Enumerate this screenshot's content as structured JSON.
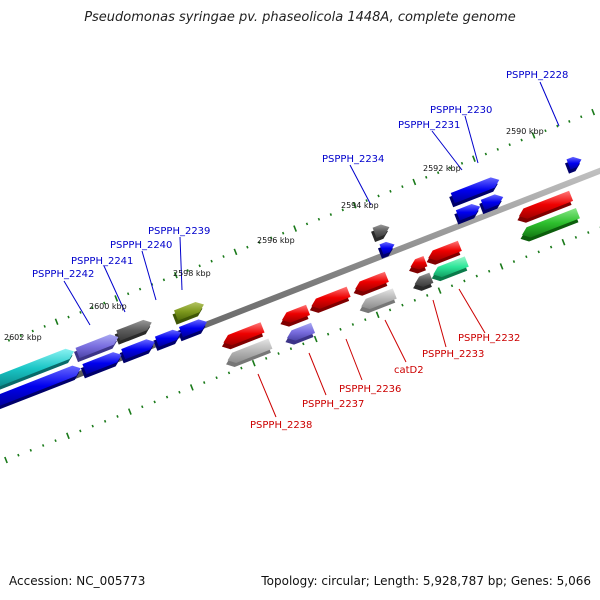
{
  "title": "Pseudomonas syringae pv. phaseolicola 1448A, complete genome",
  "footer": {
    "accession": "Accession: NC_005773",
    "summary": "Topology: circular; Length: 5,928,787 bp; Genes: 5,066"
  },
  "colors": {
    "forward_label": "#0000cc",
    "reverse_label": "#cc0000",
    "backbone": "#8a8a8a",
    "tick": "#1a7a1a"
  },
  "kbp_labels": [
    "2590 kbp",
    "2592 kbp",
    "2594 kbp",
    "2596 kbp",
    "2598 kbp",
    "2600 kbp",
    "2602 kbp"
  ],
  "forward_genes": [
    "PSPPH_2228",
    "PSPPH_2230",
    "PSPPH_2231",
    "PSPPH_2234",
    "PSPPH_2239",
    "PSPPH_2240",
    "PSPPH_2241",
    "PSPPH_2242"
  ],
  "reverse_genes": [
    "PSPPH_2232",
    "PSPPH_2233",
    "catD2",
    "PSPPH_2236",
    "PSPPH_2237",
    "PSPPH_2238"
  ],
  "feature_colors": [
    "blue",
    "red",
    "gray",
    "light-gray",
    "purple",
    "olive",
    "cyan",
    "green",
    "spring-green"
  ]
}
